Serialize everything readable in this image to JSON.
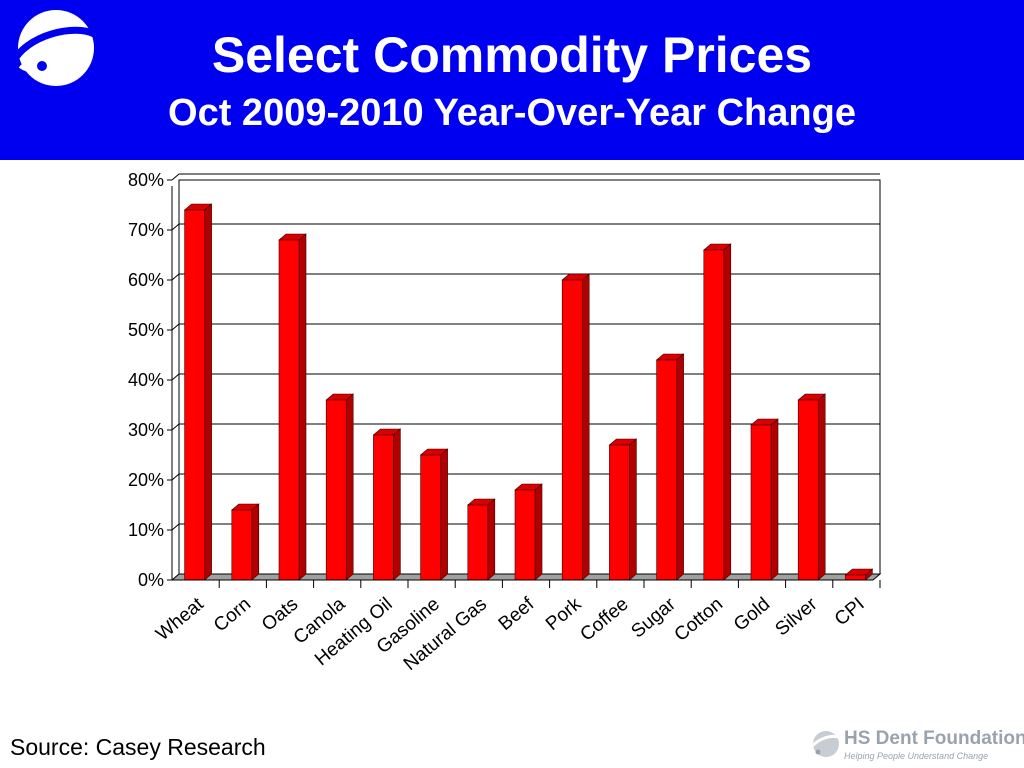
{
  "header": {
    "title": "Select Commodity Prices",
    "subtitle": "Oct 2009-2010 Year-Over-Year Change"
  },
  "colors": {
    "header_bg": "#0000f0",
    "bar_front": "#ff0000",
    "bar_side": "#b00000",
    "bar_top": "#d80000"
  },
  "chart_data": {
    "type": "bar",
    "categories": [
      "Wheat",
      "Corn",
      "Oats",
      "Canola",
      "Heating Oil",
      "Gasoline",
      "Natural Gas",
      "Beef",
      "Pork",
      "Coffee",
      "Sugar",
      "Cotton",
      "Gold",
      "Silver",
      "CPI"
    ],
    "values": [
      74,
      14,
      68,
      36,
      29,
      25,
      15,
      18,
      60,
      27,
      44,
      66,
      31,
      36,
      1
    ],
    "yticks": [
      "0%",
      "10%",
      "20%",
      "30%",
      "40%",
      "50%",
      "60%",
      "70%",
      "80%"
    ],
    "ylim": [
      0,
      80
    ],
    "grid": true,
    "style": "3d"
  },
  "footer": {
    "source": "Source: Casey Research",
    "logo_name": "HS Dent Foundation",
    "logo_tagline": "Helping People Understand Change"
  }
}
